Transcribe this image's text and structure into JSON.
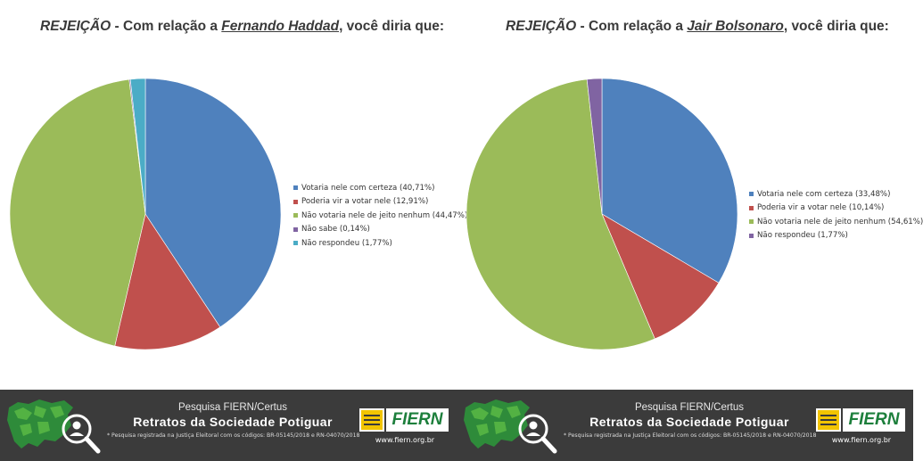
{
  "charts": [
    {
      "title_prefix": "REJEIÇÃO",
      "title_middle": " - Com relação a ",
      "title_name": "Fernando Haddad",
      "title_suffix": ", você diria que:"
    },
    {
      "title_prefix": "REJEIÇÃO",
      "title_middle": " - Com relação a ",
      "title_name": "Jair Bolsonaro",
      "title_suffix": ", você diria que:"
    }
  ],
  "chart_data": [
    {
      "type": "pie",
      "title": "REJEIÇÃO - Com relação a Fernando Haddad, você diria que:",
      "legend_position": "right",
      "slices": [
        {
          "label": "Votaria nele com certeza (40,71%)",
          "value": 40.71,
          "color": "#4f81bd"
        },
        {
          "label": "Poderia vir a votar nele (12,91%)",
          "value": 12.91,
          "color": "#c0504d"
        },
        {
          "label": "Não votaria nele de jeito nenhum (44,47%)",
          "value": 44.47,
          "color": "#9bbb59"
        },
        {
          "label": "Não sabe (0,14%)",
          "value": 0.14,
          "color": "#8064a2"
        },
        {
          "label": "Não respondeu (1,77%)",
          "value": 1.77,
          "color": "#4bacc6"
        }
      ]
    },
    {
      "type": "pie",
      "title": "REJEIÇÃO - Com relação a Jair Bolsonaro, você diria que:",
      "legend_position": "right",
      "slices": [
        {
          "label": "Votaria nele com certeza (33,48%)",
          "value": 33.48,
          "color": "#4f81bd"
        },
        {
          "label": "Poderia vir a votar nele (10,14%)",
          "value": 10.14,
          "color": "#c0504d"
        },
        {
          "label": "Não votaria nele de jeito nenhum (54,61%)",
          "value": 54.61,
          "color": "#9bbb59"
        },
        {
          "label": "Não respondeu (1,77%)",
          "value": 1.77,
          "color": "#8064a2"
        }
      ]
    }
  ],
  "footer": {
    "subtitle": "Pesquisa FIERN/Certus",
    "title": "Retratos da Sociedade Potiguar",
    "note": "* Pesquisa registrada na Justiça Eleitoral com os códigos: BR-05145/2018 e RN-04070/2018",
    "brand": "FIERN",
    "url": "www.fiern.org.br",
    "map_icon": "rn-map-magnifier-icon",
    "brand_color": "#1d7f3c",
    "accent_color": "#f2c400"
  }
}
